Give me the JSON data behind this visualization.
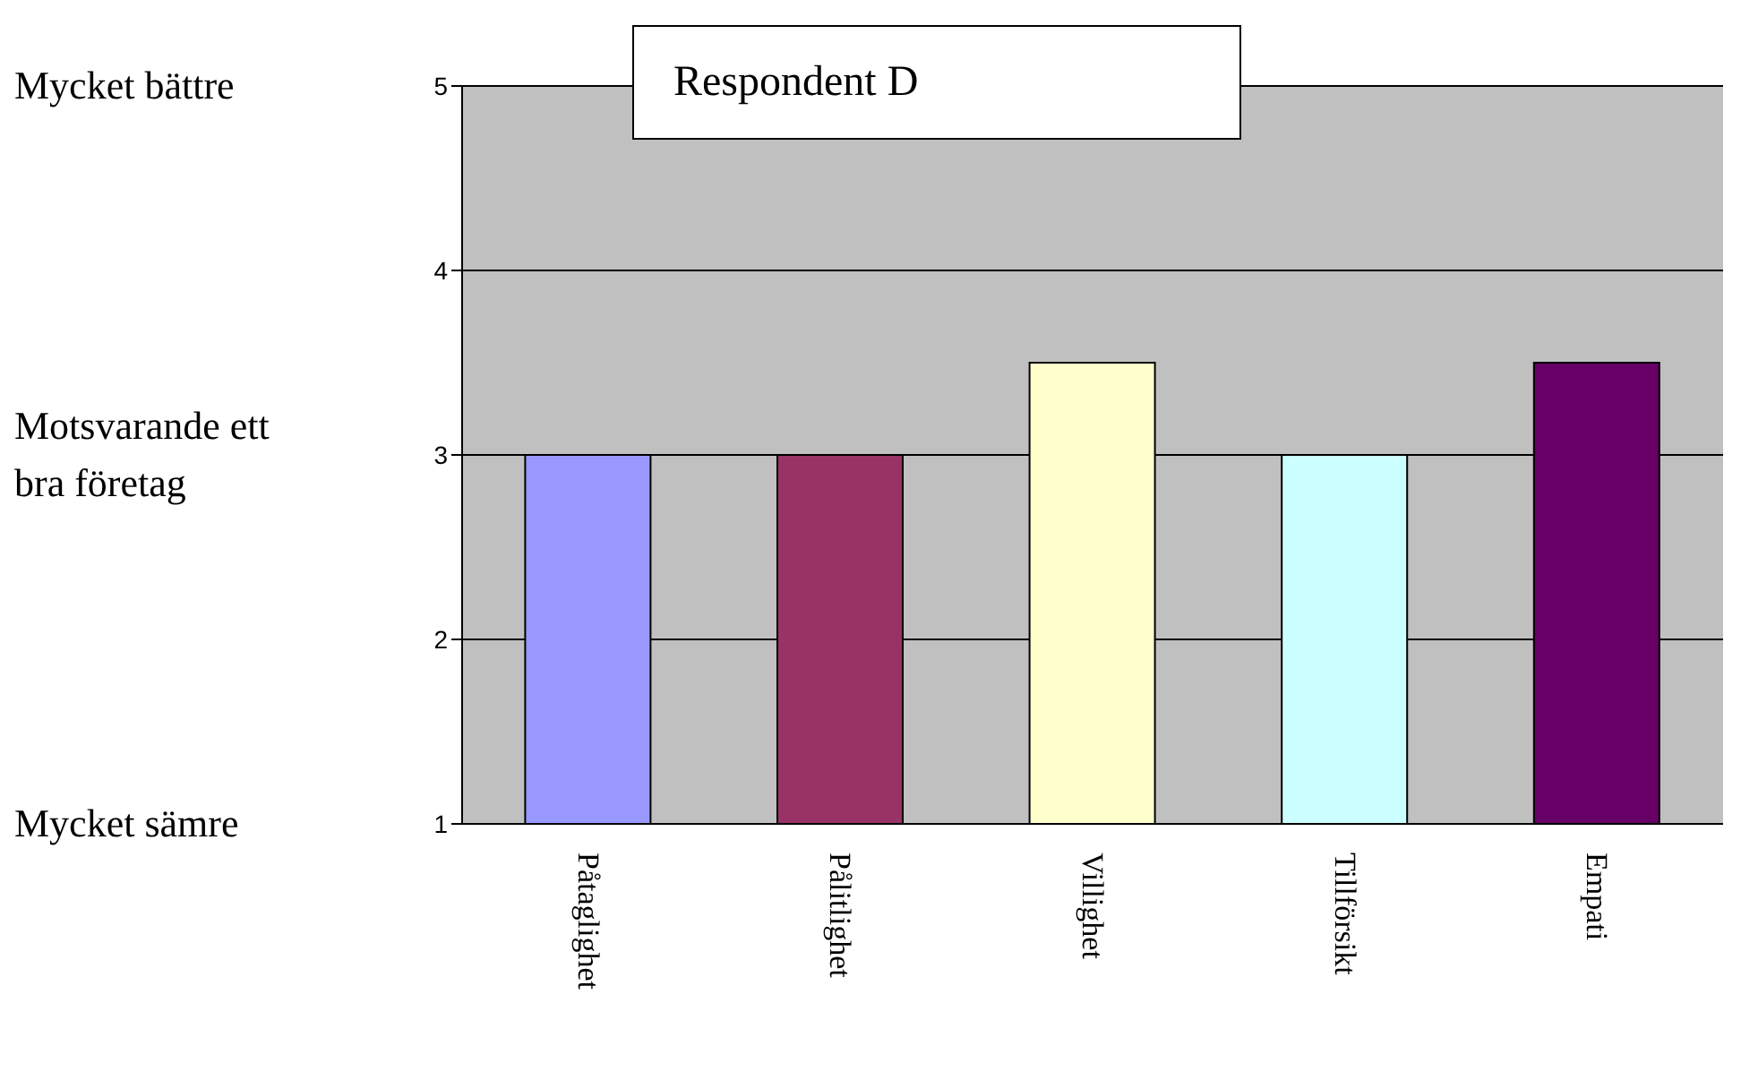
{
  "chart_data": {
    "type": "bar",
    "title": "Respondent D",
    "categories": [
      "Påtaglighet",
      "Pålitlighet",
      "Villighet",
      "Tillförsikt",
      "Empati"
    ],
    "values": [
      3,
      3,
      3.5,
      3,
      3.5
    ],
    "colors": [
      "#9999ff",
      "#993366",
      "#ffffcc",
      "#ccffff",
      "#660066"
    ],
    "ylim": [
      1,
      5
    ],
    "yticks": [
      1,
      2,
      3,
      4,
      5
    ],
    "grid": "y",
    "annotations": [
      "Mycket bättre",
      "Motsvarande ett bra företag",
      "Mycket sämre"
    ]
  }
}
